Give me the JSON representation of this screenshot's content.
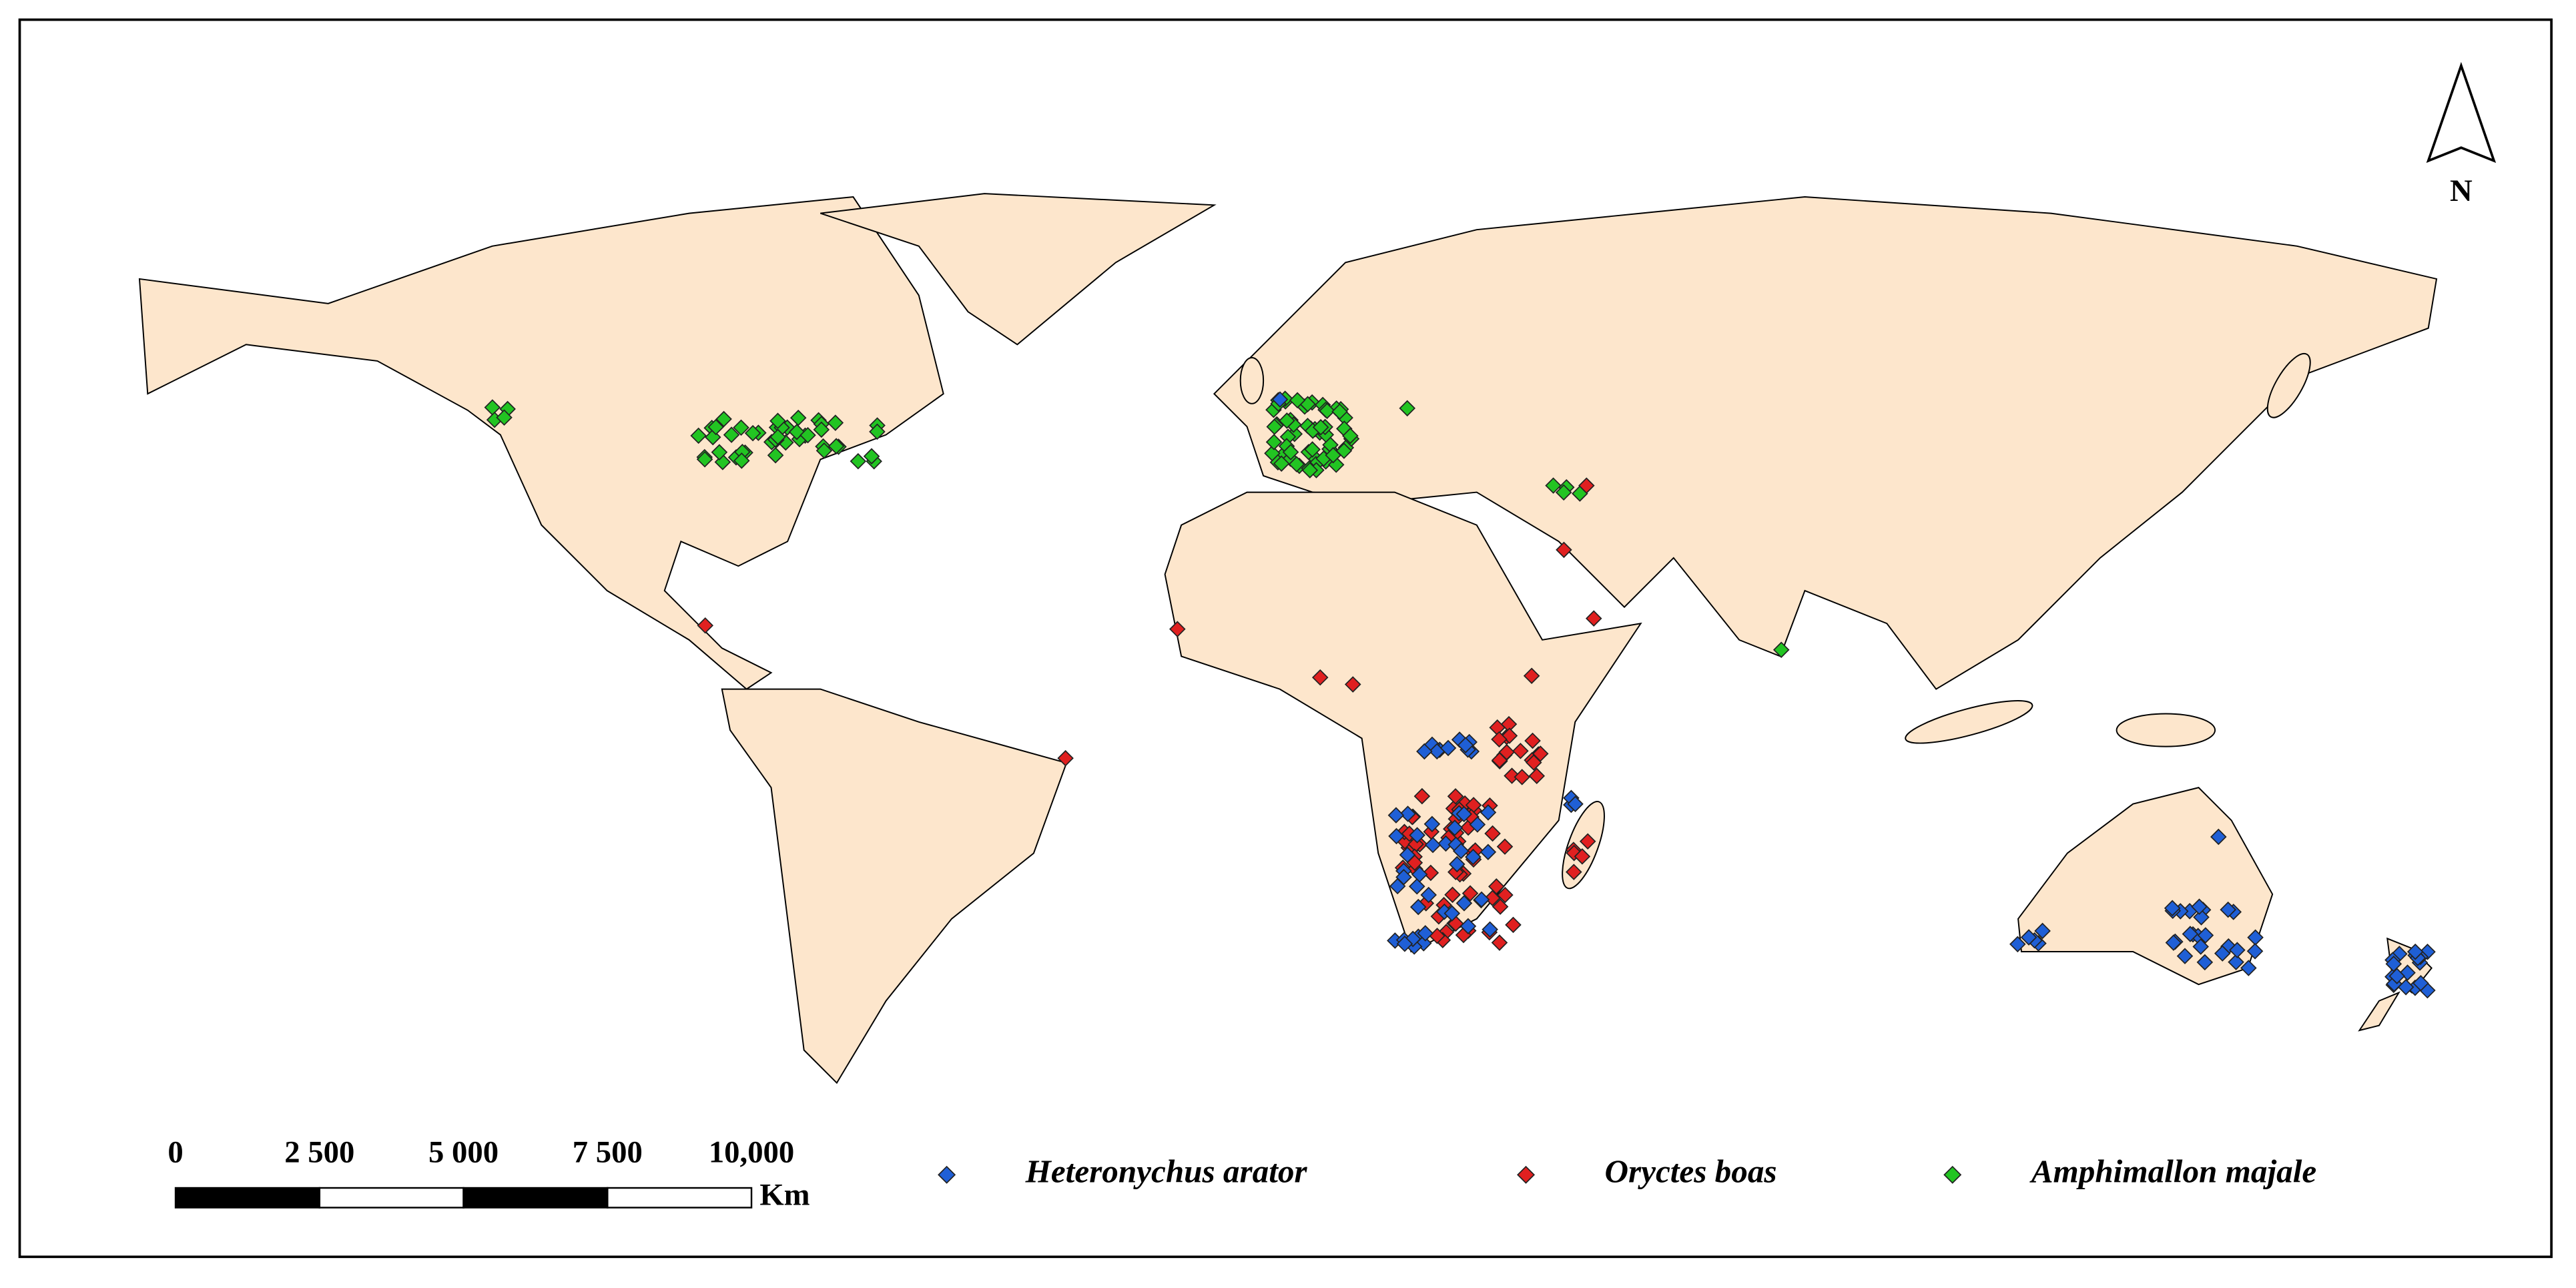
{
  "north_arrow": {
    "label": "N"
  },
  "scale_bar": {
    "labels": [
      "0",
      "2 500",
      "5 000",
      "7 500",
      "10,000"
    ],
    "unit": "Km"
  },
  "legend": [
    {
      "label": "Heteronychus arator",
      "color": "#1f5fd6"
    },
    {
      "label": "Oryctes boas",
      "color": "#e02020"
    },
    {
      "label": "Amphimallon majale",
      "color": "#22c422"
    }
  ]
}
